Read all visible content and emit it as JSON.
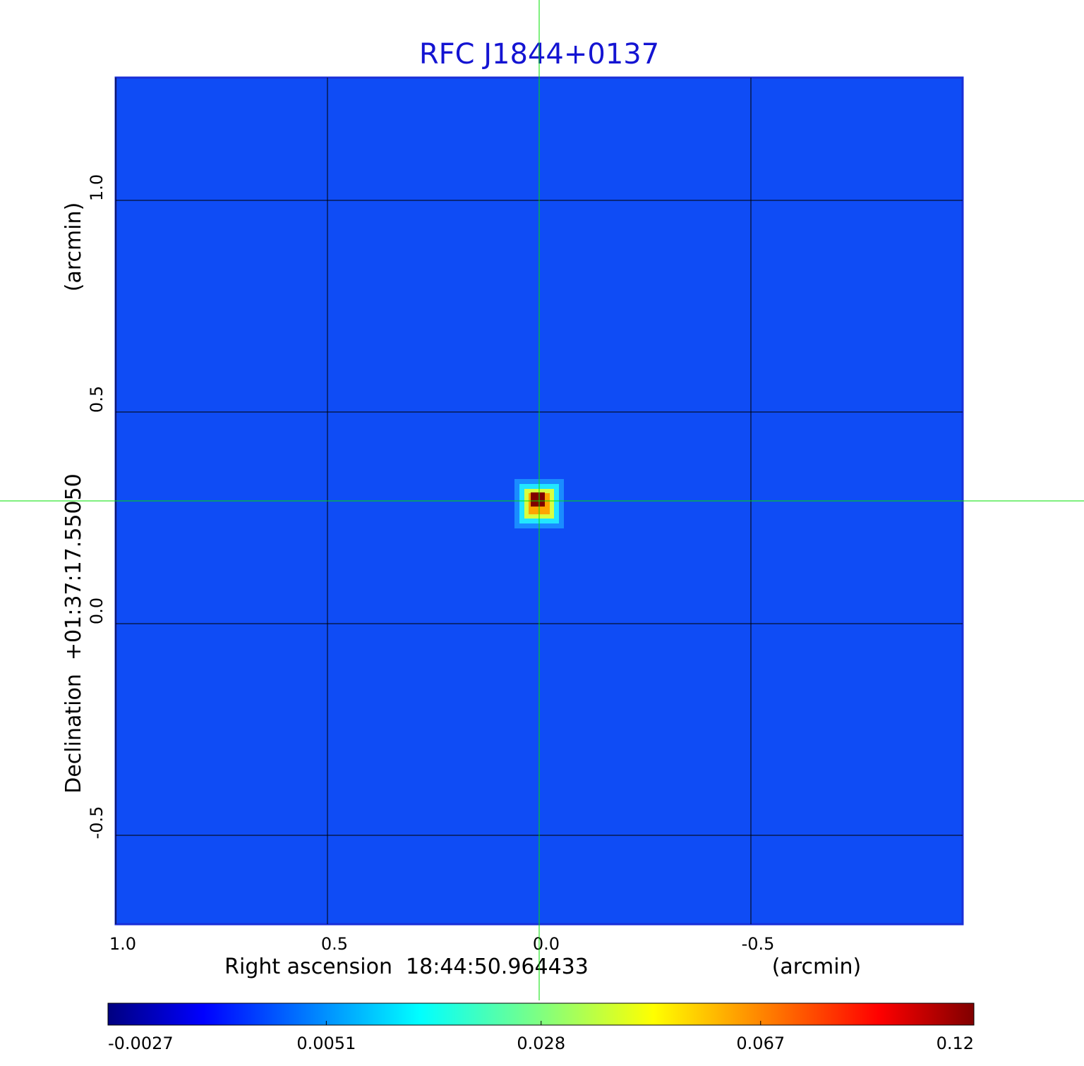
{
  "chart_data": {
    "type": "image",
    "title": "RFC J1844+0137",
    "x_label": "Right ascension  18:44:50.964433",
    "x_unit": "(arcmin)",
    "y_label": "Declination  +01:37:17.55050",
    "y_unit": "(arcmin)",
    "xlim": [
      1.0,
      -1.0
    ],
    "ylim": [
      -0.71,
      1.29
    ],
    "xticks": [
      {
        "value": 1,
        "label": "1.0"
      },
      0.5,
      {
        "value": 0,
        "label": "0.0"
      },
      -0.5
    ],
    "yticks": [
      {
        "value": 1,
        "label": "1.0"
      },
      0.5,
      {
        "value": 0,
        "label": "0.0"
      },
      -0.5
    ],
    "grid": true,
    "title_color": "#1414d2",
    "crosshair_color": "#00e000",
    "colormap": "jet",
    "peak": {
      "x": 0,
      "y": 0.29,
      "value": 0.12
    },
    "colorbar": {
      "scale": "sqrt",
      "lim": [
        -0.0027,
        0.12
      ],
      "ticks": [
        -0.0027,
        0.0051,
        0.028,
        0.067,
        0.12
      ]
    }
  }
}
